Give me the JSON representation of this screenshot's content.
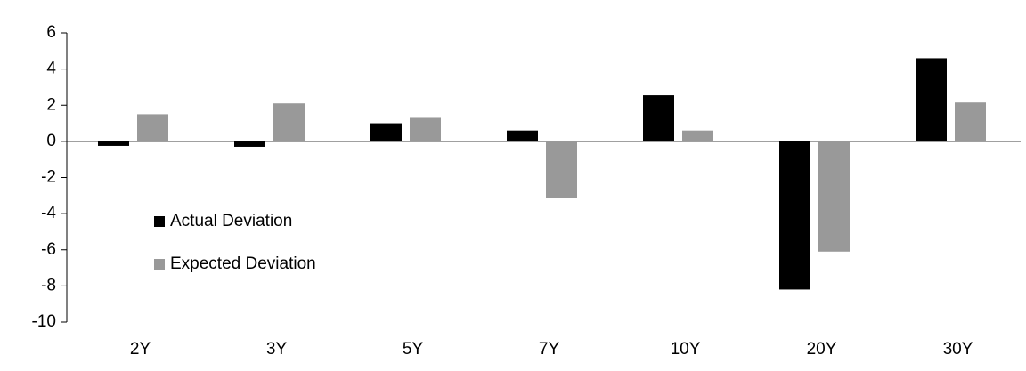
{
  "chart_data": {
    "type": "bar",
    "categories": [
      "2Y",
      "3Y",
      "5Y",
      "7Y",
      "10Y",
      "20Y",
      "30Y"
    ],
    "series": [
      {
        "name": "Actual Deviation",
        "color": "#000000",
        "values": [
          -0.25,
          -0.3,
          1.0,
          0.6,
          2.55,
          -8.2,
          4.6
        ]
      },
      {
        "name": "Expected Deviation",
        "color": "#999999",
        "values": [
          1.5,
          2.1,
          1.3,
          -3.15,
          0.6,
          -6.1,
          2.15
        ]
      }
    ],
    "ylim": [
      -10,
      6
    ],
    "yticks": [
      -10,
      -8,
      -6,
      -4,
      -2,
      0,
      2,
      4,
      6
    ],
    "grid": false,
    "legend": "left"
  }
}
